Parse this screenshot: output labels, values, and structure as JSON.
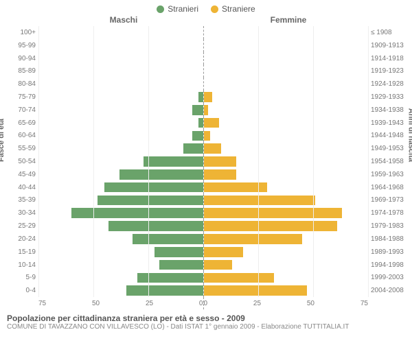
{
  "legend": {
    "male": {
      "label": "Stranieri",
      "color": "#6aa36a"
    },
    "female": {
      "label": "Straniere",
      "color": "#eeb435"
    }
  },
  "headers": {
    "left": "Maschi",
    "right": "Femmine"
  },
  "side_labels": {
    "left": "Fasce di età",
    "right": "Anni di nascita"
  },
  "chart": {
    "type": "population-pyramid",
    "xmax": 75,
    "xticks": [
      0,
      25,
      50,
      75
    ],
    "grid_color": "#eeeeee",
    "background_color": "#ffffff",
    "male_color": "#6aa36a",
    "female_color": "#eeb435",
    "rows": [
      {
        "age": "100+",
        "birth": "≤ 1908",
        "m": 0,
        "f": 0
      },
      {
        "age": "95-99",
        "birth": "1909-1913",
        "m": 0,
        "f": 0
      },
      {
        "age": "90-94",
        "birth": "1914-1918",
        "m": 0,
        "f": 0
      },
      {
        "age": "85-89",
        "birth": "1919-1923",
        "m": 0,
        "f": 0
      },
      {
        "age": "80-84",
        "birth": "1924-1928",
        "m": 0,
        "f": 0
      },
      {
        "age": "75-79",
        "birth": "1929-1933",
        "m": 2,
        "f": 4
      },
      {
        "age": "70-74",
        "birth": "1934-1938",
        "m": 5,
        "f": 2
      },
      {
        "age": "65-69",
        "birth": "1939-1943",
        "m": 2,
        "f": 7
      },
      {
        "age": "60-64",
        "birth": "1944-1948",
        "m": 5,
        "f": 3
      },
      {
        "age": "55-59",
        "birth": "1949-1953",
        "m": 9,
        "f": 8
      },
      {
        "age": "50-54",
        "birth": "1954-1958",
        "m": 27,
        "f": 15
      },
      {
        "age": "45-49",
        "birth": "1959-1963",
        "m": 38,
        "f": 15
      },
      {
        "age": "40-44",
        "birth": "1964-1968",
        "m": 45,
        "f": 29
      },
      {
        "age": "35-39",
        "birth": "1969-1973",
        "m": 48,
        "f": 51
      },
      {
        "age": "30-34",
        "birth": "1974-1978",
        "m": 60,
        "f": 63
      },
      {
        "age": "25-29",
        "birth": "1979-1983",
        "m": 43,
        "f": 61
      },
      {
        "age": "20-24",
        "birth": "1984-1988",
        "m": 32,
        "f": 45
      },
      {
        "age": "15-19",
        "birth": "1989-1993",
        "m": 22,
        "f": 18
      },
      {
        "age": "10-14",
        "birth": "1994-1998",
        "m": 20,
        "f": 13
      },
      {
        "age": "5-9",
        "birth": "1999-2003",
        "m": 30,
        "f": 32
      },
      {
        "age": "0-4",
        "birth": "2004-2008",
        "m": 35,
        "f": 47
      }
    ]
  },
  "footer": {
    "title": "Popolazione per cittadinanza straniera per età e sesso - 2009",
    "subtitle": "COMUNE DI TAVAZZANO CON VILLAVESCO (LO) - Dati ISTAT 1° gennaio 2009 - Elaborazione TUTTITALIA.IT"
  }
}
